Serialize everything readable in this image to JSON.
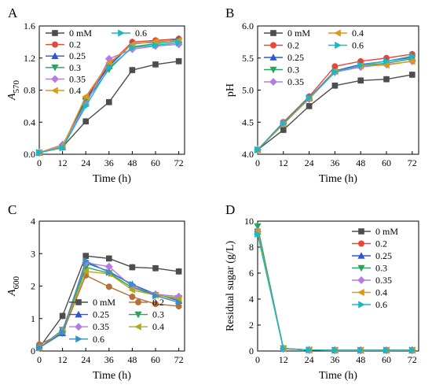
{
  "chart_data": [
    {
      "type": "line",
      "panel_label": "A",
      "xlabel": "Time (h)",
      "ylabel": "A",
      "ylabel_sub": "570",
      "x": [
        0,
        12,
        24,
        36,
        48,
        60,
        72
      ],
      "xlim": [
        0,
        75
      ],
      "ylim": [
        0.0,
        1.6
      ],
      "xticks": [
        0,
        12,
        24,
        36,
        48,
        60,
        72
      ],
      "yticks": [
        0.0,
        0.4,
        0.8,
        1.2,
        1.6
      ],
      "ytick_format": "1",
      "legend_position": "top-left",
      "legend_columns": 2,
      "series": [
        {
          "name": "0 mM",
          "values": [
            0.02,
            0.09,
            0.41,
            0.65,
            1.05,
            1.12,
            1.16
          ]
        },
        {
          "name": "0.2",
          "values": [
            0.02,
            0.1,
            0.7,
            1.12,
            1.4,
            1.42,
            1.44
          ]
        },
        {
          "name": "0.25",
          "values": [
            0.02,
            0.09,
            0.68,
            1.1,
            1.38,
            1.4,
            1.43
          ]
        },
        {
          "name": "0.3",
          "values": [
            0.02,
            0.09,
            0.66,
            1.06,
            1.34,
            1.38,
            1.41
          ]
        },
        {
          "name": "0.35",
          "values": [
            0.02,
            0.12,
            0.62,
            1.19,
            1.31,
            1.35,
            1.37
          ]
        },
        {
          "name": "0.4",
          "values": [
            0.02,
            0.1,
            0.72,
            1.14,
            1.37,
            1.41,
            1.42
          ]
        },
        {
          "name": "0.6",
          "values": [
            0.02,
            0.08,
            0.6,
            1.08,
            1.33,
            1.36,
            1.39
          ]
        }
      ]
    },
    {
      "type": "line",
      "panel_label": "B",
      "xlabel": "Time (h)",
      "ylabel": "pH",
      "x": [
        0,
        12,
        24,
        36,
        48,
        60,
        72
      ],
      "xlim": [
        0,
        75
      ],
      "ylim": [
        4.0,
        6.0
      ],
      "xticks": [
        0,
        12,
        24,
        36,
        48,
        60,
        72
      ],
      "yticks": [
        4.0,
        4.5,
        5.0,
        5.5,
        6.0
      ],
      "ytick_format": "1",
      "legend_position": "top-left",
      "legend_columns": 2,
      "series": [
        {
          "name": "0 mM",
          "values": [
            4.07,
            4.38,
            4.75,
            5.07,
            5.15,
            5.17,
            5.24
          ]
        },
        {
          "name": "0.2",
          "values": [
            4.07,
            4.5,
            4.9,
            5.37,
            5.45,
            5.5,
            5.56
          ]
        },
        {
          "name": "0.25",
          "values": [
            4.07,
            4.48,
            4.88,
            5.3,
            5.4,
            5.45,
            5.51
          ]
        },
        {
          "name": "0.3",
          "values": [
            4.07,
            4.47,
            4.87,
            5.28,
            5.38,
            5.42,
            5.49
          ]
        },
        {
          "name": "0.35",
          "values": [
            4.07,
            4.48,
            4.86,
            5.28,
            5.36,
            5.4,
            5.45
          ]
        },
        {
          "name": "0.4",
          "values": [
            4.07,
            4.47,
            4.87,
            5.29,
            5.38,
            5.39,
            5.45
          ]
        },
        {
          "name": "0.6",
          "values": [
            4.07,
            4.48,
            4.88,
            5.28,
            5.39,
            5.45,
            5.53
          ]
        }
      ]
    },
    {
      "type": "line",
      "panel_label": "C",
      "xlabel": "Time (h)",
      "ylabel": "A",
      "ylabel_sub": "600",
      "x": [
        0,
        12,
        24,
        36,
        48,
        60,
        72
      ],
      "xlim": [
        0,
        75
      ],
      "ylim": [
        0,
        4
      ],
      "xticks": [
        0,
        12,
        24,
        36,
        48,
        60,
        72
      ],
      "yticks": [
        0,
        1,
        2,
        3,
        4
      ],
      "ytick_format": "0",
      "legend_position": "bottom-left",
      "legend_columns": 2,
      "series": [
        {
          "name": "0 mM",
          "values": [
            0.1,
            1.08,
            2.93,
            2.85,
            2.58,
            2.55,
            2.45
          ]
        },
        {
          "name": "0.2",
          "values": [
            0.2,
            0.55,
            2.33,
            1.98,
            1.67,
            1.45,
            1.38
          ]
        },
        {
          "name": "0.25",
          "values": [
            0.1,
            0.55,
            2.72,
            2.45,
            2.05,
            1.75,
            1.55
          ]
        },
        {
          "name": "0.3",
          "values": [
            0.1,
            0.65,
            2.58,
            2.4,
            1.95,
            1.72,
            1.63
          ]
        },
        {
          "name": "0.35",
          "values": [
            0.1,
            0.62,
            2.72,
            2.6,
            1.98,
            1.75,
            1.68
          ]
        },
        {
          "name": "0.4",
          "values": [
            0.1,
            0.6,
            2.45,
            2.38,
            1.88,
            1.72,
            1.6
          ]
        },
        {
          "name": "0.6",
          "values": [
            0.1,
            0.58,
            2.78,
            2.42,
            2.05,
            1.7,
            1.5
          ]
        }
      ]
    },
    {
      "type": "line",
      "panel_label": "D",
      "xlabel": "Time (h)",
      "ylabel": "Residual sugar (g/L)",
      "x": [
        0,
        12,
        24,
        36,
        48,
        60,
        72
      ],
      "xlim": [
        0,
        75
      ],
      "ylim": [
        0,
        10
      ],
      "xticks": [
        0,
        12,
        24,
        36,
        48,
        60,
        72
      ],
      "yticks": [
        0,
        2,
        4,
        6,
        8,
        10
      ],
      "ytick_format": "0",
      "legend_position": "top-right",
      "legend_columns": 1,
      "series": [
        {
          "name": "0 mM",
          "values": [
            9.2,
            0.2,
            0.08,
            0.06,
            0.06,
            0.06,
            0.06
          ]
        },
        {
          "name": "0.2",
          "values": [
            9.2,
            0.18,
            0.08,
            0.06,
            0.06,
            0.06,
            0.06
          ]
        },
        {
          "name": "0.25",
          "values": [
            9.2,
            0.18,
            0.08,
            0.06,
            0.06,
            0.06,
            0.06
          ]
        },
        {
          "name": "0.3",
          "values": [
            9.6,
            0.2,
            0.08,
            0.06,
            0.06,
            0.06,
            0.06
          ]
        },
        {
          "name": "0.35",
          "values": [
            9.2,
            0.18,
            0.08,
            0.06,
            0.06,
            0.06,
            0.06
          ]
        },
        {
          "name": "0.4",
          "values": [
            9.2,
            0.18,
            0.08,
            0.06,
            0.06,
            0.06,
            0.06
          ]
        },
        {
          "name": "0.6",
          "values": [
            9.0,
            0.18,
            0.08,
            0.06,
            0.06,
            0.06,
            0.06
          ]
        }
      ]
    }
  ],
  "series_styles": [
    {
      "color": "#4d4d4d",
      "marker": "square"
    },
    {
      "color": "#e8473c",
      "marker": "circle"
    },
    {
      "color": "#2d56d6",
      "marker": "triangle-up"
    },
    {
      "color": "#2aa35c",
      "marker": "triangle-down"
    },
    {
      "color": "#b57ae6",
      "marker": "diamond"
    },
    {
      "color": "#d99a16",
      "marker": "triangle-left"
    },
    {
      "color": "#19b8c4",
      "marker": "triangle-right"
    }
  ],
  "series_styles_panel_c": [
    {
      "color": "#4d4d4d",
      "marker": "square"
    },
    {
      "color": "#b5703a",
      "marker": "circle"
    },
    {
      "color": "#2d56d6",
      "marker": "triangle-up"
    },
    {
      "color": "#2aa35c",
      "marker": "triangle-down"
    },
    {
      "color": "#b57ae6",
      "marker": "diamond"
    },
    {
      "color": "#b5a81a",
      "marker": "triangle-left"
    },
    {
      "color": "#3a8fc4",
      "marker": "triangle-right"
    }
  ]
}
